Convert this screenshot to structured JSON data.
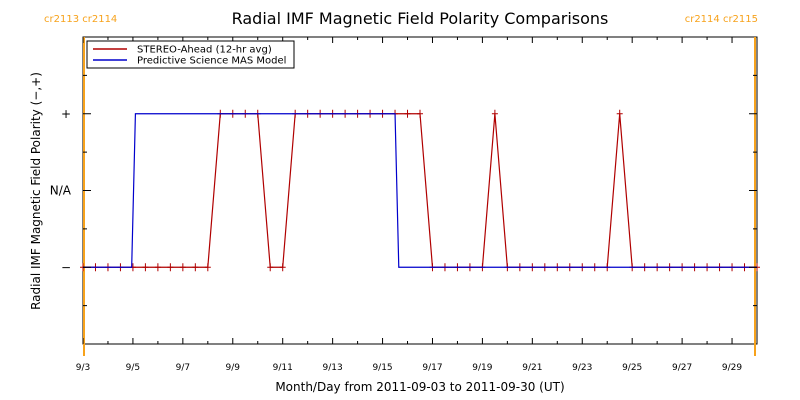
{
  "chart_data": {
    "type": "line",
    "title": "Radial IMF Magnetic Field Polarity Comparisons",
    "xlabel": "Month/Day from 2011-09-03 to 2011-09-30 (UT)",
    "ylabel": "Radial IMF Magnetic Field Polarity (−,+)",
    "x_range_days": [
      0,
      27
    ],
    "x_ticks": [
      {
        "day": 0,
        "label": "9/3"
      },
      {
        "day": 2,
        "label": "9/5"
      },
      {
        "day": 4,
        "label": "9/7"
      },
      {
        "day": 6,
        "label": "9/9"
      },
      {
        "day": 8,
        "label": "9/11"
      },
      {
        "day": 10,
        "label": "9/13"
      },
      {
        "day": 12,
        "label": "9/15"
      },
      {
        "day": 14,
        "label": "9/17"
      },
      {
        "day": 16,
        "label": "9/19"
      },
      {
        "day": 18,
        "label": "9/21"
      },
      {
        "day": 20,
        "label": "9/23"
      },
      {
        "day": 22,
        "label": "9/25"
      },
      {
        "day": 24,
        "label": "9/27"
      },
      {
        "day": 26,
        "label": "9/29"
      }
    ],
    "y_range": [
      -2,
      2
    ],
    "y_ticks": [
      {
        "value": 1,
        "label": "+"
      },
      {
        "value": 0,
        "label": "N/A"
      },
      {
        "value": -1,
        "label": "−"
      }
    ],
    "carrington": [
      {
        "label": "cr2113 cr2114",
        "day": 0.04,
        "side": "left"
      },
      {
        "label": "cr2114 cr2115",
        "day": 26.92,
        "side": "right"
      }
    ],
    "legend_position": "top-left",
    "series": [
      {
        "name": "STEREO-Ahead (12-hr avg)",
        "color": "#b00000",
        "marker": "+",
        "x": [
          0,
          0.5,
          1,
          1.5,
          2,
          2.5,
          3,
          3.5,
          4,
          4.5,
          5,
          5.5,
          6,
          6.5,
          7,
          7.5,
          8,
          8.5,
          9,
          9.5,
          10,
          10.5,
          11,
          11.5,
          12,
          12.5,
          13,
          13.5,
          14,
          14.5,
          15,
          15.5,
          16,
          16.5,
          17,
          17.5,
          18,
          18.5,
          19,
          19.5,
          20,
          20.5,
          21,
          21.5,
          22,
          22.5,
          23,
          23.5,
          24,
          24.5,
          25,
          25.5,
          26,
          26.5,
          27
        ],
        "values": [
          -1,
          -1,
          -1,
          -1,
          -1,
          -1,
          -1,
          -1,
          -1,
          -1,
          -1,
          1,
          1,
          1,
          1,
          -1,
          -1,
          1,
          1,
          1,
          1,
          1,
          1,
          1,
          1,
          1,
          1,
          1,
          -1,
          -1,
          -1,
          -1,
          -1,
          1,
          -1,
          -1,
          -1,
          -1,
          -1,
          -1,
          -1,
          -1,
          -1,
          1,
          -1,
          -1,
          -1,
          -1,
          -1,
          -1,
          -1,
          -1,
          -1,
          -1,
          -1
        ]
      },
      {
        "name": "Predictive Science MAS Model",
        "color": "#0000cc",
        "marker": "none",
        "x": [
          0,
          1.95,
          2.1,
          12.5,
          12.65,
          27
        ],
        "values": [
          -1,
          -1,
          1,
          1,
          -1,
          -1
        ]
      }
    ]
  }
}
